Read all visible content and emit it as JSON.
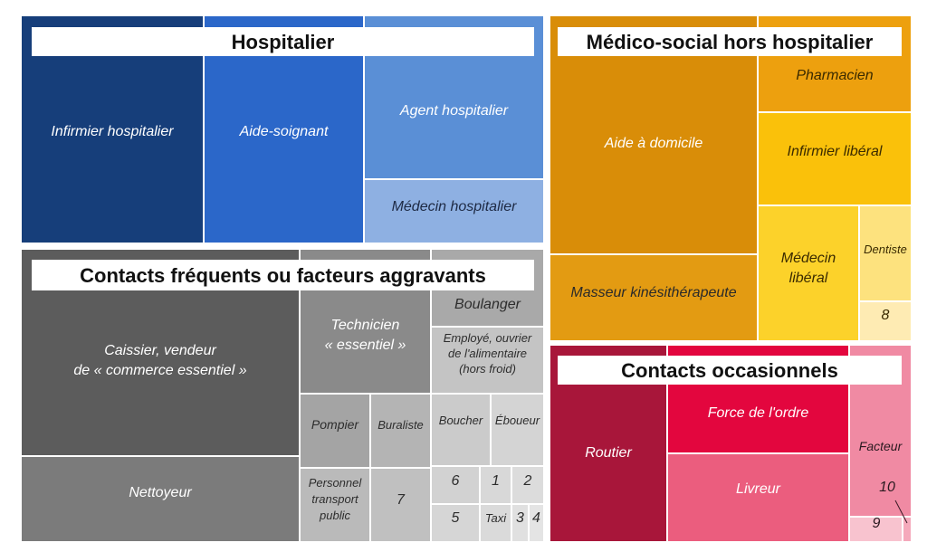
{
  "chart_data": {
    "type": "treemap",
    "groups": [
      {
        "name": "Hospitalier",
        "color": "#2a62c8",
        "items": [
          {
            "label": "Infirmier hospitalier",
            "color": "#163e7a"
          },
          {
            "label": "Aide-soignant",
            "color": "#2b67c9"
          },
          {
            "label": "Agent hospitalier",
            "color": "#5a8fd6"
          },
          {
            "label": "Médecin hospitalier",
            "color": "#8eb0e2"
          }
        ]
      },
      {
        "name": "Médico-social hors hospitalier",
        "color": "#e09a0c",
        "items": [
          {
            "label": "Aide à domicile",
            "color": "#d98d08"
          },
          {
            "label": "Masseur kinésithérapeute",
            "color": "#e39b12"
          },
          {
            "label": "Pharmacien",
            "color": "#eda00e"
          },
          {
            "label": "Infirmier libéral",
            "color": "#fac10a"
          },
          {
            "label": "Médecin libéral",
            "color": "#fcd22a"
          },
          {
            "label": "Dentiste",
            "color": "#fde27e"
          },
          {
            "label": "8",
            "color": "#feebb3"
          }
        ]
      },
      {
        "name": "Contacts fréquents ou facteurs aggravants",
        "color": "#5d5d5d",
        "items": [
          {
            "label": "Caissier, vendeur de « commerce essentiel »",
            "color": "#5c5c5c"
          },
          {
            "label": "Nettoyeur",
            "color": "#7b7b7b"
          },
          {
            "label": "Technicien « essentiel »",
            "color": "#8a8a8a"
          },
          {
            "label": "Boulanger",
            "color": "#a9a9a9"
          },
          {
            "label": "Employé, ouvrier de l'alimentaire (hors froid)",
            "color": "#c4c4c4"
          },
          {
            "label": "Pompier",
            "color": "#a4a4a4"
          },
          {
            "label": "Buraliste",
            "color": "#b4b4b4"
          },
          {
            "label": "Boucher",
            "color": "#cbcbcb"
          },
          {
            "label": "Éboueur",
            "color": "#d4d4d4"
          },
          {
            "label": "Personnel transport public",
            "color": "#bababa"
          },
          {
            "label": "7",
            "color": "#c0c0c0"
          },
          {
            "label": "6",
            "color": "#d2d2d2"
          },
          {
            "label": "1",
            "color": "#d8d8d8"
          },
          {
            "label": "2",
            "color": "#dcdcdc"
          },
          {
            "label": "5",
            "color": "#d6d6d6"
          },
          {
            "label": "Taxi",
            "color": "#dadada"
          },
          {
            "label": "3",
            "color": "#e0e0e0"
          },
          {
            "label": "4",
            "color": "#e4e4e4"
          }
        ]
      },
      {
        "name": "Contacts occasionnels",
        "color": "#c01a40",
        "items": [
          {
            "label": "Routier",
            "color": "#a8163a"
          },
          {
            "label": "Force de l'ordre",
            "color": "#e3063e"
          },
          {
            "label": "Livreur",
            "color": "#eb5d7e"
          },
          {
            "label": "Facteur",
            "color": "#f08aa3"
          },
          {
            "label": "10",
            "color": "#f5a9bb"
          },
          {
            "label": "9",
            "color": "#f8c3cf"
          }
        ]
      }
    ]
  }
}
